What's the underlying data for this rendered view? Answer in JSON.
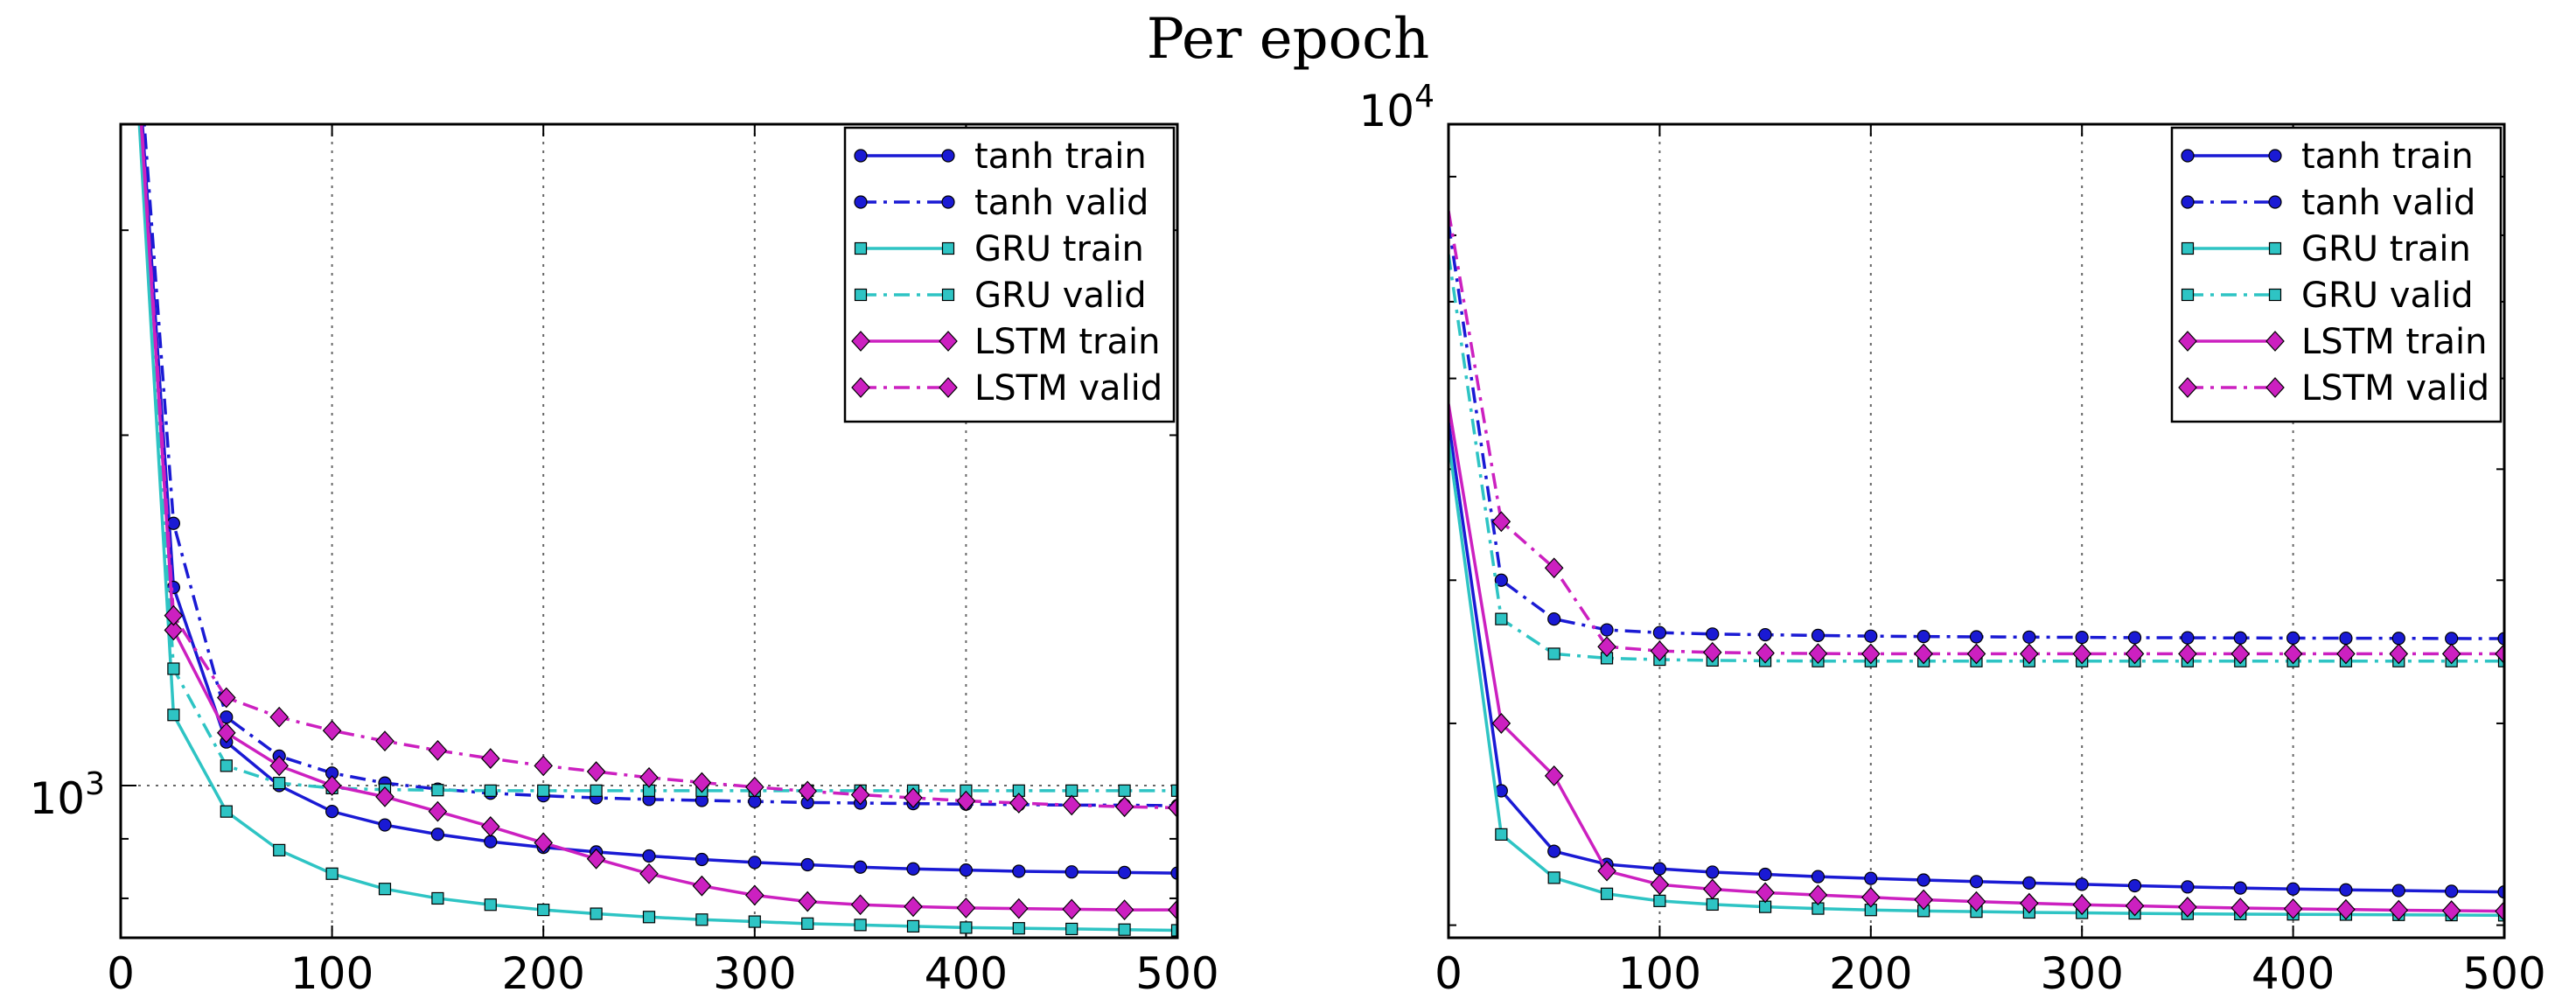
{
  "title": "Per epoch",
  "legend_entries": [
    "tanh train",
    "tanh valid",
    "GRU train",
    "GRU valid",
    "LSTM train",
    "LSTM valid"
  ],
  "colors": {
    "tanh": "#1a1ad4",
    "GRU": "#2ec4c4",
    "LSTM": "#cc20c0"
  },
  "chart_data": [
    {
      "type": "line",
      "title": "",
      "xlabel": "",
      "ylabel": "",
      "xlim": [
        0,
        500
      ],
      "xticks": [
        "0",
        "100",
        "200",
        "300",
        "400",
        "500"
      ],
      "yscale": "log",
      "ylim": [
        740,
        3700
      ],
      "yticks": [
        {
          "value": 1000,
          "label": "10^3"
        }
      ],
      "grid": true,
      "legend": "top-right",
      "x": [
        0,
        25,
        50,
        75,
        100,
        125,
        150,
        175,
        200,
        225,
        250,
        275,
        300,
        325,
        350,
        375,
        400,
        425,
        450,
        475,
        500
      ],
      "series": [
        {
          "name": "tanh train",
          "model": "tanh",
          "style": "solid",
          "marker": "circle",
          "values": [
            7000,
            1480,
            1090,
            1000,
            950,
            925,
            908,
            895,
            885,
            877,
            870,
            864,
            859,
            855,
            851,
            848,
            846,
            844,
            843,
            842,
            841
          ]
        },
        {
          "name": "tanh valid",
          "model": "tanh",
          "style": "dashdot",
          "marker": "circle",
          "values": [
            7000,
            1680,
            1145,
            1060,
            1025,
            1005,
            993,
            985,
            980,
            976,
            973,
            971,
            969,
            967,
            966,
            965,
            964,
            963,
            962,
            962,
            961
          ]
        },
        {
          "name": "GRU train",
          "model": "GRU",
          "style": "solid",
          "marker": "square",
          "values": [
            7000,
            1150,
            950,
            880,
            840,
            815,
            800,
            790,
            782,
            776,
            771,
            767,
            764,
            761,
            759,
            757,
            755,
            754,
            753,
            752,
            751
          ]
        },
        {
          "name": "GRU valid",
          "model": "GRU",
          "style": "dashdot",
          "marker": "square",
          "values": [
            7000,
            1260,
            1040,
            1005,
            995,
            992,
            991,
            990,
            990,
            990,
            990,
            990,
            990,
            990,
            990,
            990,
            990,
            990,
            990,
            990,
            990
          ]
        },
        {
          "name": "LSTM train",
          "model": "LSTM",
          "style": "solid",
          "marker": "diamond",
          "values": [
            7000,
            1360,
            1110,
            1040,
            1000,
            978,
            950,
            922,
            893,
            865,
            840,
            820,
            805,
            795,
            790,
            787,
            785,
            784,
            783,
            782,
            782
          ]
        },
        {
          "name": "LSTM valid",
          "model": "LSTM",
          "style": "dashdot",
          "marker": "diamond",
          "values": [
            7000,
            1400,
            1190,
            1145,
            1115,
            1092,
            1072,
            1055,
            1040,
            1028,
            1016,
            1006,
            997,
            989,
            982,
            976,
            970,
            966,
            962,
            959,
            957
          ]
        }
      ]
    },
    {
      "type": "line",
      "title": "",
      "xlabel": "",
      "ylabel": "",
      "xlim": [
        0,
        500
      ],
      "xticks": [
        "0",
        "100",
        "200",
        "300",
        "400",
        "500"
      ],
      "yscale": "log",
      "ylim": [
        1950,
        10000
      ],
      "yticks": [
        {
          "value": 10000,
          "label": "10^4"
        }
      ],
      "grid": true,
      "legend": "top-right",
      "x": [
        0,
        25,
        50,
        75,
        100,
        125,
        150,
        175,
        200,
        225,
        250,
        275,
        300,
        325,
        350,
        375,
        400,
        425,
        450,
        475,
        500
      ],
      "series": [
        {
          "name": "tanh train",
          "model": "tanh",
          "style": "solid",
          "marker": "circle",
          "values": [
            5500,
            2620,
            2320,
            2260,
            2240,
            2225,
            2215,
            2205,
            2197,
            2190,
            2183,
            2177,
            2171,
            2165,
            2160,
            2155,
            2151,
            2147,
            2144,
            2141,
            2138
          ]
        },
        {
          "name": "tanh valid",
          "model": "tanh",
          "style": "dashdot",
          "marker": "circle",
          "values": [
            8200,
            4000,
            3700,
            3620,
            3600,
            3590,
            3585,
            3580,
            3575,
            3572,
            3570,
            3568,
            3566,
            3564,
            3563,
            3562,
            3561,
            3560,
            3559,
            3558,
            3557
          ]
        },
        {
          "name": "GRU train",
          "model": "GRU",
          "style": "solid",
          "marker": "square",
          "values": [
            5300,
            2400,
            2200,
            2130,
            2100,
            2085,
            2075,
            2068,
            2062,
            2058,
            2055,
            2052,
            2050,
            2048,
            2046,
            2045,
            2044,
            2043,
            2042,
            2041,
            2040
          ]
        },
        {
          "name": "GRU valid",
          "model": "GRU",
          "style": "dashdot",
          "marker": "square",
          "values": [
            7700,
            3700,
            3450,
            3420,
            3410,
            3405,
            3402,
            3400,
            3400,
            3400,
            3400,
            3400,
            3400,
            3400,
            3400,
            3400,
            3400,
            3400,
            3400,
            3400,
            3400
          ]
        },
        {
          "name": "LSTM train",
          "model": "LSTM",
          "style": "solid",
          "marker": "diamond",
          "values": [
            5700,
            3000,
            2700,
            2230,
            2170,
            2150,
            2135,
            2125,
            2115,
            2105,
            2097,
            2090,
            2084,
            2079,
            2074,
            2070,
            2067,
            2064,
            2061,
            2059,
            2057
          ]
        },
        {
          "name": "LSTM valid",
          "model": "LSTM",
          "style": "dashdot",
          "marker": "diamond",
          "values": [
            8400,
            4500,
            4100,
            3500,
            3470,
            3460,
            3455,
            3452,
            3450,
            3450,
            3450,
            3450,
            3450,
            3450,
            3450,
            3450,
            3450,
            3450,
            3450,
            3450,
            3450
          ]
        }
      ]
    }
  ]
}
